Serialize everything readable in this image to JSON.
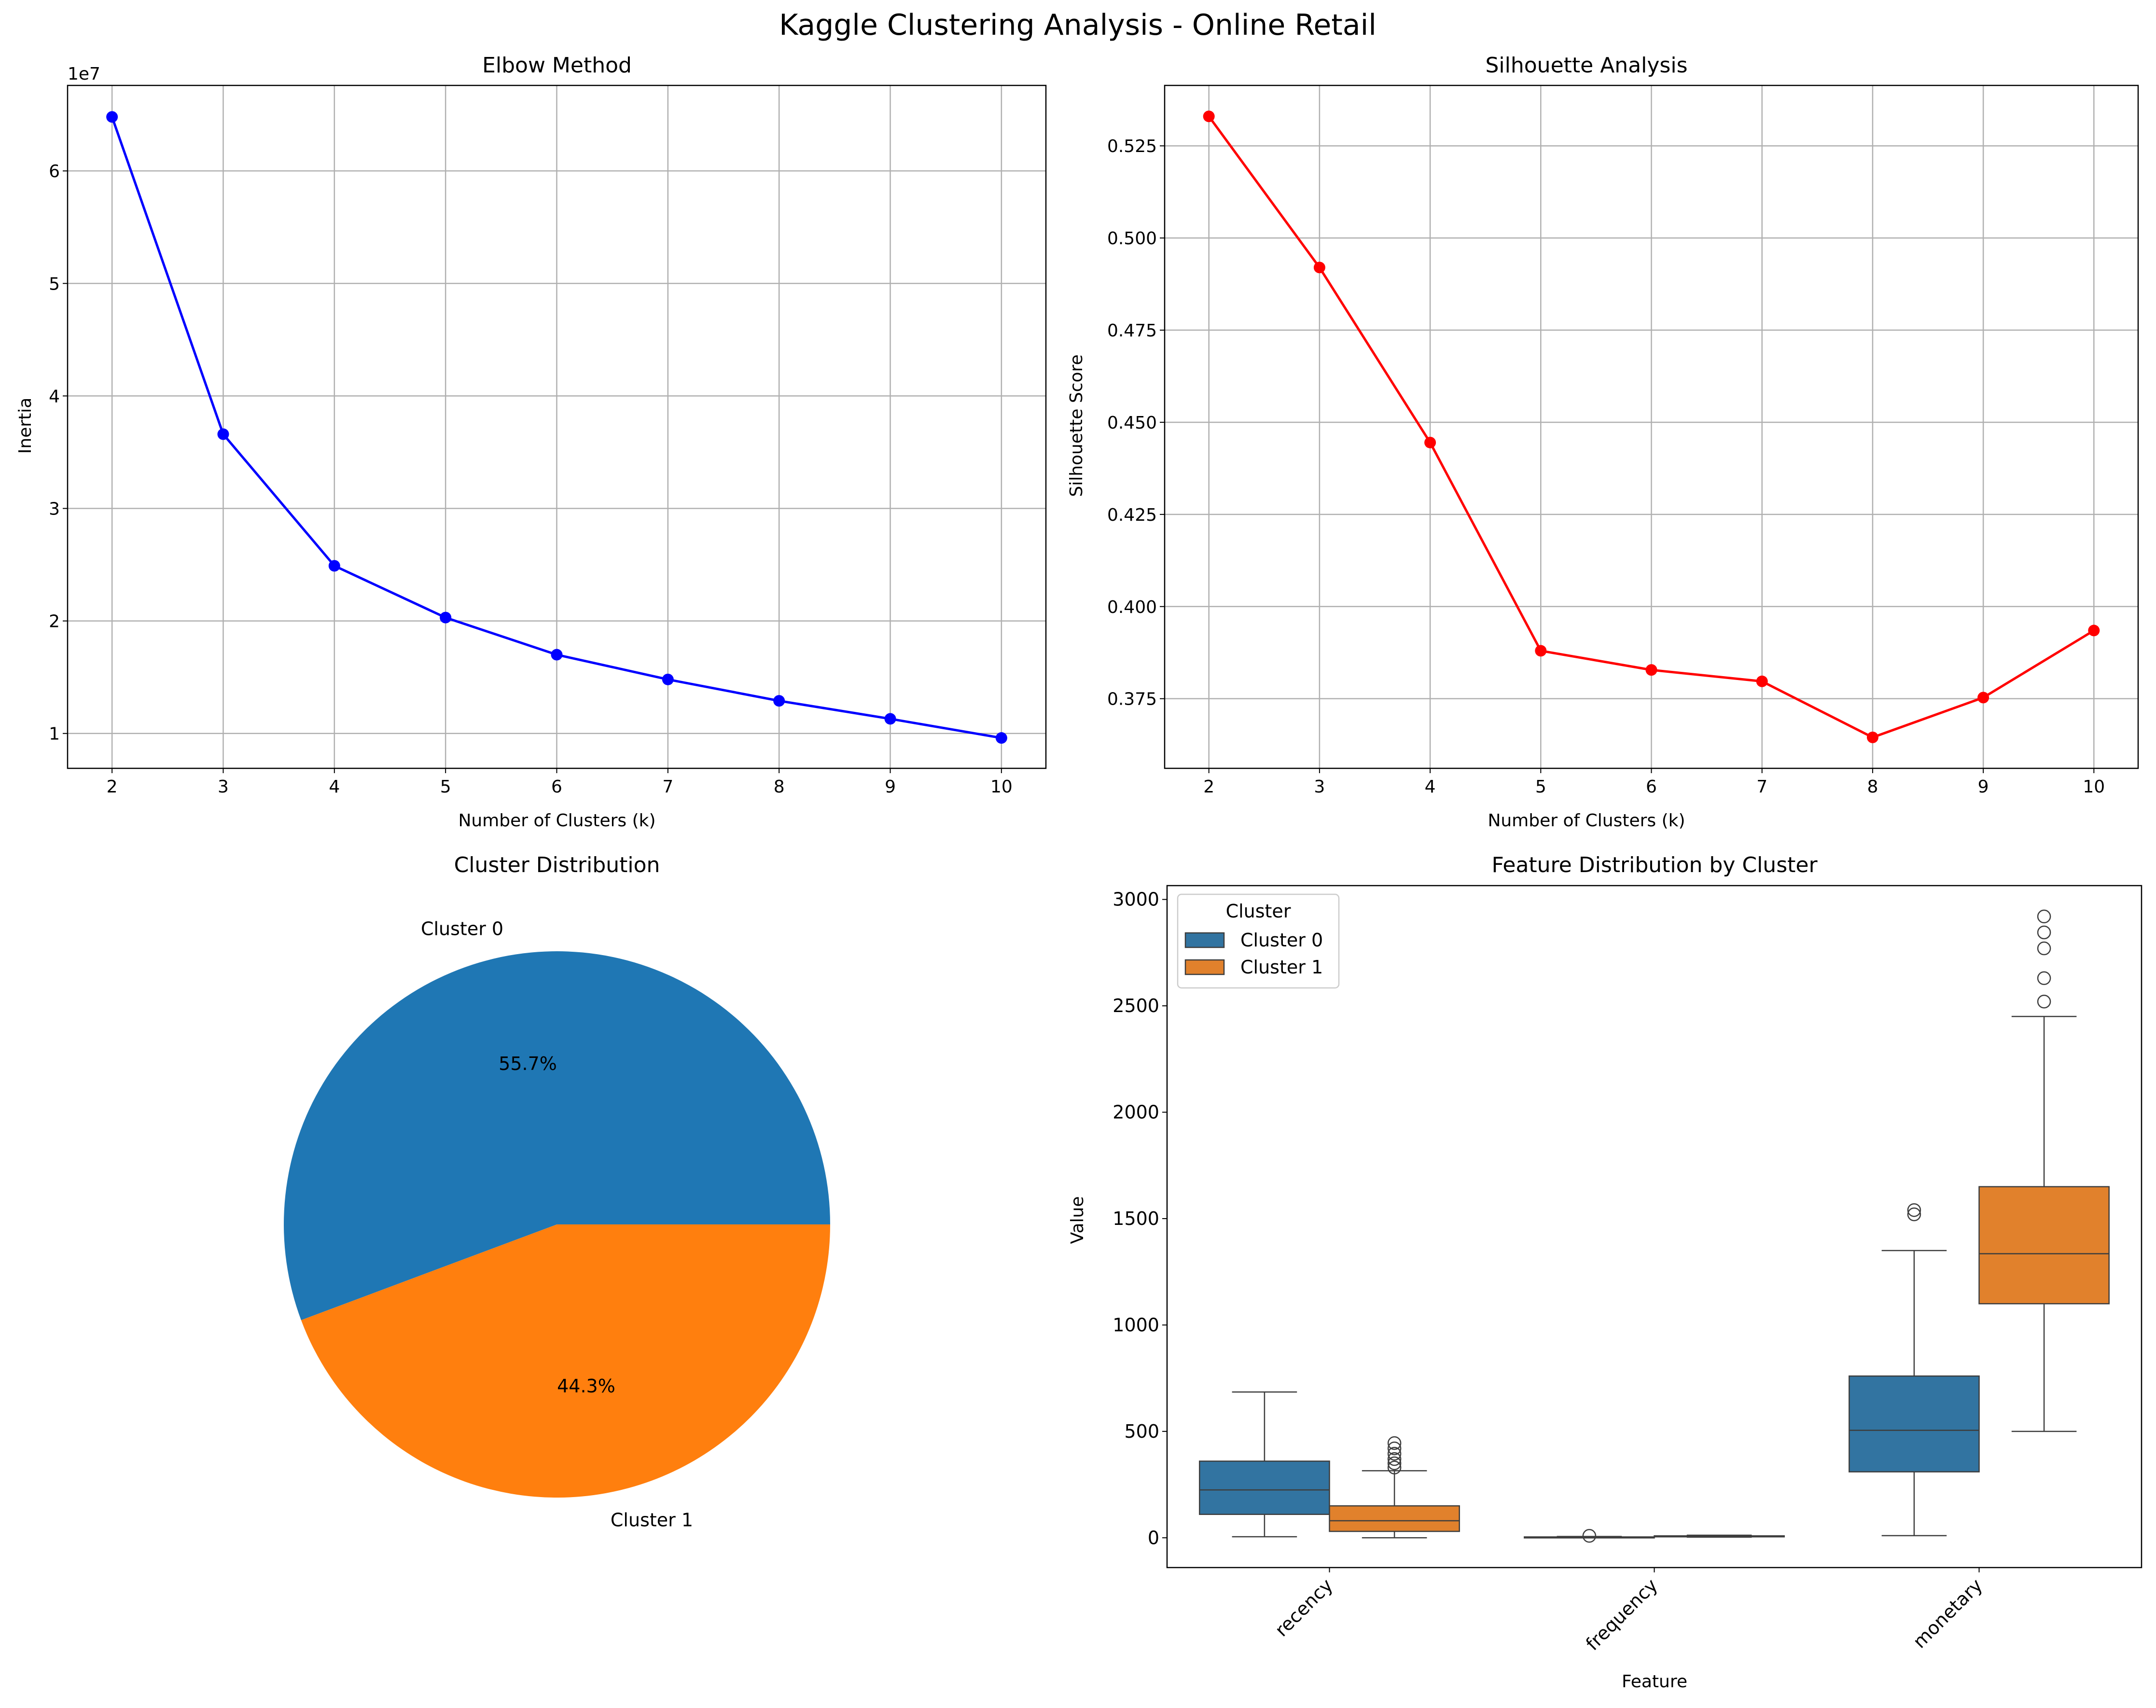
{
  "suptitle": "Kaggle Clustering Analysis - Online Retail",
  "chart_data": [
    {
      "type": "line",
      "title": "Elbow Method",
      "xlabel": "Number of Clusters (k)",
      "ylabel": "Inertia",
      "offset_text": "1e7",
      "color": "#0000ff",
      "grid": true,
      "x": [
        2,
        3,
        4,
        5,
        6,
        7,
        8,
        9,
        10
      ],
      "y": [
        64.8,
        36.6,
        24.9,
        20.3,
        17.0,
        14.8,
        12.9,
        11.3,
        9.6
      ],
      "xlim": [
        1.6,
        10.4
      ],
      "ylim": [
        6.9,
        67.6
      ],
      "xticks": [
        2,
        3,
        4,
        5,
        6,
        7,
        8,
        9,
        10
      ],
      "yticks": [
        1,
        2,
        3,
        4,
        5,
        6
      ],
      "yticks_scale": 10
    },
    {
      "type": "line",
      "title": "Silhouette Analysis",
      "xlabel": "Number of Clusters (k)",
      "ylabel": "Silhouette Score",
      "color": "#ff0000",
      "grid": true,
      "x": [
        2,
        3,
        4,
        5,
        6,
        7,
        8,
        9,
        10
      ],
      "y": [
        0.533,
        0.492,
        0.4445,
        0.388,
        0.3828,
        0.3797,
        0.3645,
        0.3753,
        0.3935
      ],
      "xlim": [
        1.6,
        10.4
      ],
      "ylim": [
        0.3561,
        0.5414
      ],
      "xticks": [
        2,
        3,
        4,
        5,
        6,
        7,
        8,
        9,
        10
      ],
      "yticks": [
        0.375,
        0.4,
        0.425,
        0.45,
        0.475,
        0.5,
        0.525
      ],
      "ytick_labels": [
        "0.375",
        "0.400",
        "0.425",
        "0.450",
        "0.475",
        "0.500",
        "0.525"
      ]
    },
    {
      "type": "pie",
      "title": "Cluster Distribution",
      "labels": [
        "Cluster 0",
        "Cluster 1"
      ],
      "values": [
        55.7,
        44.3
      ],
      "pct_labels": [
        "55.7%",
        "44.3%"
      ],
      "colors": [
        "#1f77b4",
        "#ff7f0e"
      ]
    },
    {
      "type": "box",
      "title": "Feature Distribution by Cluster",
      "xlabel": "Feature",
      "ylabel": "Value",
      "categories": [
        "recency",
        "frequency",
        "monetary"
      ],
      "ylim": [
        -140,
        3065
      ],
      "yticks": [
        0,
        500,
        1000,
        1500,
        2000,
        2500,
        3000
      ],
      "legend": {
        "title": "Cluster",
        "position": "upper-left"
      },
      "series": [
        {
          "name": "Cluster 0",
          "color": "#3274a1",
          "boxes": [
            {
              "whislo": 5,
              "q1": 110,
              "med": 225,
              "q3": 360,
              "whishi": 685,
              "fliers": []
            },
            {
              "whislo": 1,
              "q1": 2,
              "med": 3,
              "q3": 4,
              "whishi": 6,
              "fliers": [
                9
              ]
            },
            {
              "whislo": 10,
              "q1": 310,
              "med": 505,
              "q3": 760,
              "whishi": 1350,
              "fliers": [
                1520,
                1540
              ]
            }
          ]
        },
        {
          "name": "Cluster 1",
          "color": "#e1812c",
          "boxes": [
            {
              "whislo": 0,
              "q1": 30,
              "med": 80,
              "q3": 150,
              "whishi": 315,
              "fliers": [
                330,
                350,
                370,
                395,
                420,
                445
              ]
            },
            {
              "whislo": 3,
              "q1": 5,
              "med": 7,
              "q3": 9,
              "whishi": 12,
              "fliers": []
            },
            {
              "whislo": 500,
              "q1": 1100,
              "med": 1335,
              "q3": 1650,
              "whishi": 2450,
              "fliers": [
                2520,
                2630,
                2770,
                2845,
                2920
              ]
            }
          ]
        }
      ]
    }
  ]
}
